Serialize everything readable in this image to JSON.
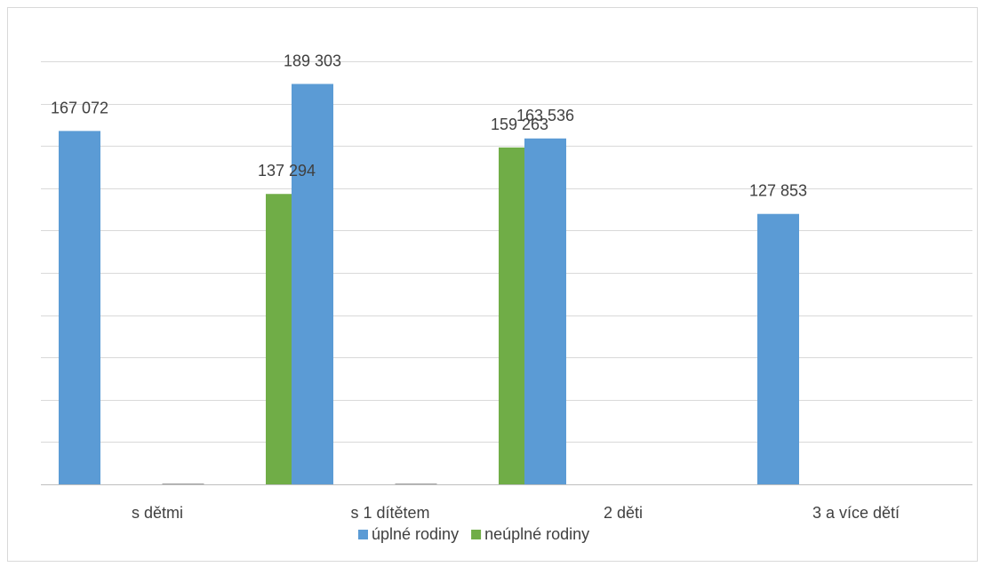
{
  "chart_data": {
    "type": "bar",
    "title": "",
    "xlabel": "",
    "ylabel": "",
    "categories": [
      "s dětmi",
      "s 1 dítětem",
      "2 děti",
      "3 a více dětí"
    ],
    "series": [
      {
        "name": "úplné rodiny",
        "color": "#5b9bd5",
        "values": [
          167072,
          189303,
          163536,
          127853
        ],
        "labels": [
          "167 072",
          "189 303",
          "163 536",
          "127 853"
        ]
      },
      {
        "name": "",
        "color": "#a5a5a5",
        "values": [
          200,
          200,
          null,
          null
        ],
        "labels": [
          "",
          "",
          "",
          ""
        ]
      },
      {
        "name": "neúplné rodiny",
        "color": "#70ad47",
        "values": [
          137294,
          159263,
          null,
          null
        ],
        "labels": [
          "137 294",
          "159 263",
          "",
          ""
        ]
      }
    ],
    "ylim": [
      0,
      200000
    ],
    "y_gridline_step": 20000,
    "grid": true,
    "y_tick_labels_visible": false,
    "legend_position": "bottom"
  }
}
